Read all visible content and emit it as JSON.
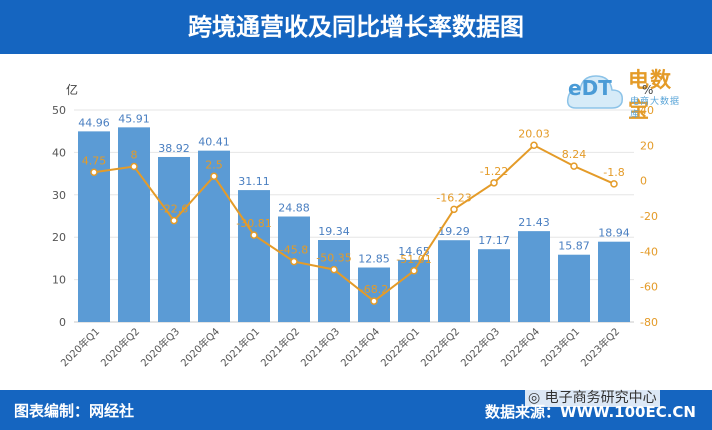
{
  "header": {
    "title": "跨境通营收及同比增长率数据图"
  },
  "footer": {
    "left_text": "图表编制：网经社",
    "right_text": "数据来源：WWW.100EC.CN"
  },
  "watermark": {
    "text": "电子商务研究中心"
  },
  "logo": {
    "main": "电数宝",
    "sub": "电商大数据库",
    "mark": "eDT"
  },
  "colors": {
    "header_bg": "#1565c0",
    "bar": "#5b9bd5",
    "line": "#e49b28",
    "bar_label": "#4a7fc1"
  },
  "chart_data": {
    "type": "bar",
    "title": "",
    "categories": [
      "2020年Q1",
      "2020年Q2",
      "2020年Q3",
      "2020年Q4",
      "2021年Q1",
      "2021年Q2",
      "2021年Q3",
      "2021年Q4",
      "2022年Q1",
      "2022年Q2",
      "2022年Q3",
      "2022年Q4",
      "2023年Q1",
      "2023年Q2"
    ],
    "series": [
      {
        "type": "bar",
        "axis": "left",
        "values": [
          44.96,
          45.91,
          38.92,
          40.41,
          31.11,
          24.88,
          19.34,
          12.85,
          14.65,
          19.29,
          17.17,
          21.43,
          15.87,
          18.94
        ]
      },
      {
        "type": "line",
        "axis": "right",
        "values": [
          4.75,
          8,
          -22.6,
          2.5,
          -30.81,
          -45.8,
          -50.35,
          -68.2,
          -51.01,
          -16.23,
          -1.22,
          20.03,
          8.24,
          -1.8
        ],
        "labels": [
          "4.75",
          "8",
          "-22.6",
          "2.5",
          "-30.81",
          "-45.8",
          "-50.35",
          "-68.2",
          "-51.01",
          "-16.23",
          "-1.22",
          "20.03",
          "8.24",
          "-1.8"
        ]
      }
    ],
    "ylabel": "亿",
    "y2label": "%",
    "ylim": [
      0,
      50
    ],
    "yticks": [
      0,
      10,
      20,
      30,
      40,
      50
    ],
    "y2lim": [
      -80,
      40
    ],
    "y2ticks": [
      -80,
      -60,
      -40,
      -20,
      0,
      20,
      40
    ],
    "grid": true,
    "legend": "none"
  }
}
